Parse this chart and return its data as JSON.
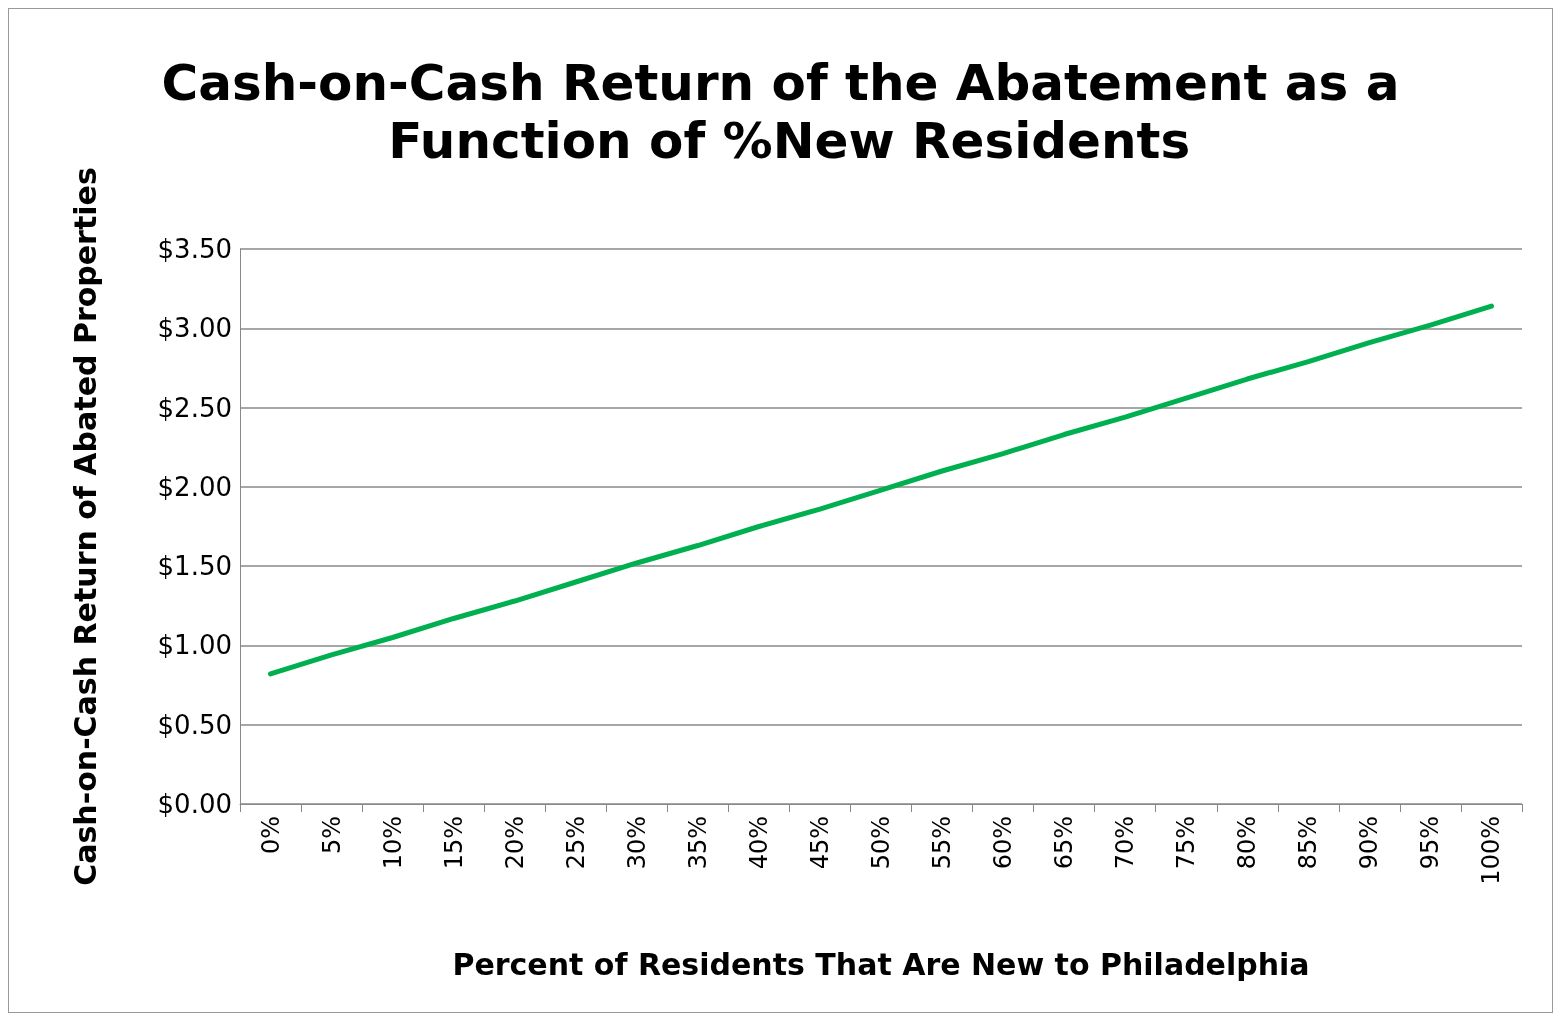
{
  "chart_data": {
    "type": "line",
    "title": "Cash-on-Cash Return of the Abatement as a Function of %New Residents",
    "xlabel": "Percent of Residents That Are New to Philadelphia",
    "ylabel": "Cash-on-Cash Return of Abated Properties",
    "categories": [
      "0%",
      "5%",
      "10%",
      "15%",
      "20%",
      "25%",
      "30%",
      "35%",
      "40%",
      "45%",
      "50%",
      "55%",
      "60%",
      "65%",
      "70%",
      "75%",
      "80%",
      "85%",
      "90%",
      "95%",
      "100%"
    ],
    "series": [
      {
        "color": "#00b050",
        "values": [
          0.82,
          0.94,
          1.05,
          1.17,
          1.28,
          1.4,
          1.52,
          1.63,
          1.75,
          1.86,
          1.98,
          2.1,
          2.21,
          2.33,
          2.44,
          2.56,
          2.68,
          2.79,
          2.91,
          3.02,
          3.14
        ]
      }
    ],
    "ylim": [
      0,
      3.5
    ],
    "yticks": [
      {
        "value": 0,
        "label": "$0.00"
      },
      {
        "value": 0.5,
        "label": "$0.50"
      },
      {
        "value": 1,
        "label": "$1.00"
      },
      {
        "value": 1.5,
        "label": "$1.50"
      },
      {
        "value": 2,
        "label": "$2.00"
      },
      {
        "value": 2.5,
        "label": "$2.50"
      },
      {
        "value": 3,
        "label": "$3.00"
      },
      {
        "value": 3.5,
        "label": "$3.50"
      }
    ],
    "grid": "y",
    "marker": "none",
    "line_style": "solid"
  }
}
